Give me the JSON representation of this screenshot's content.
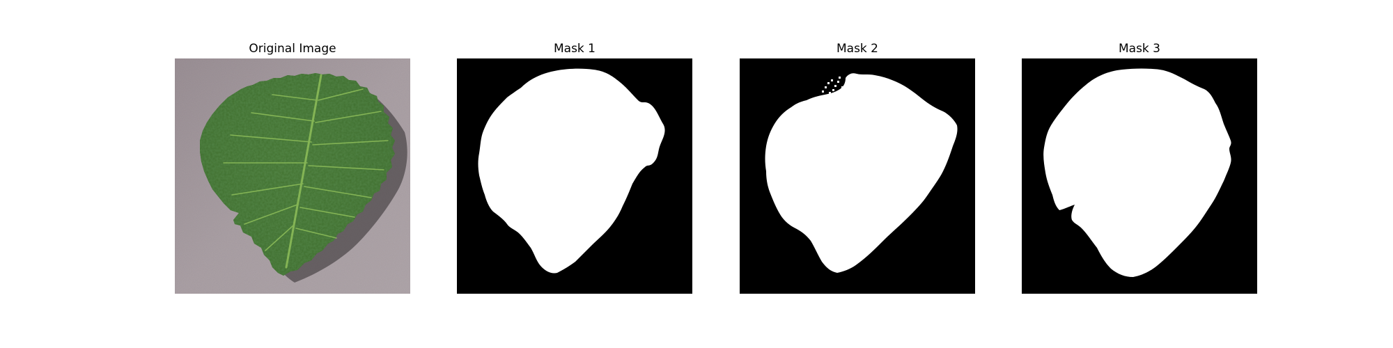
{
  "figure": {
    "panels": [
      {
        "title": "Original Image",
        "kind": "photo",
        "subject": "green serrated leaf on gray textured surface"
      },
      {
        "title": "Mask 1",
        "kind": "binary-mask"
      },
      {
        "title": "Mask 2",
        "kind": "binary-mask"
      },
      {
        "title": "Mask 3",
        "kind": "binary-mask"
      }
    ]
  },
  "colors": {
    "background": "#ffffff",
    "mask_background": "#000000",
    "mask_foreground": "#ffffff",
    "surface": "#9e9499",
    "leaf_dark": "#2f5a22",
    "leaf_light": "#5b8e3c"
  }
}
